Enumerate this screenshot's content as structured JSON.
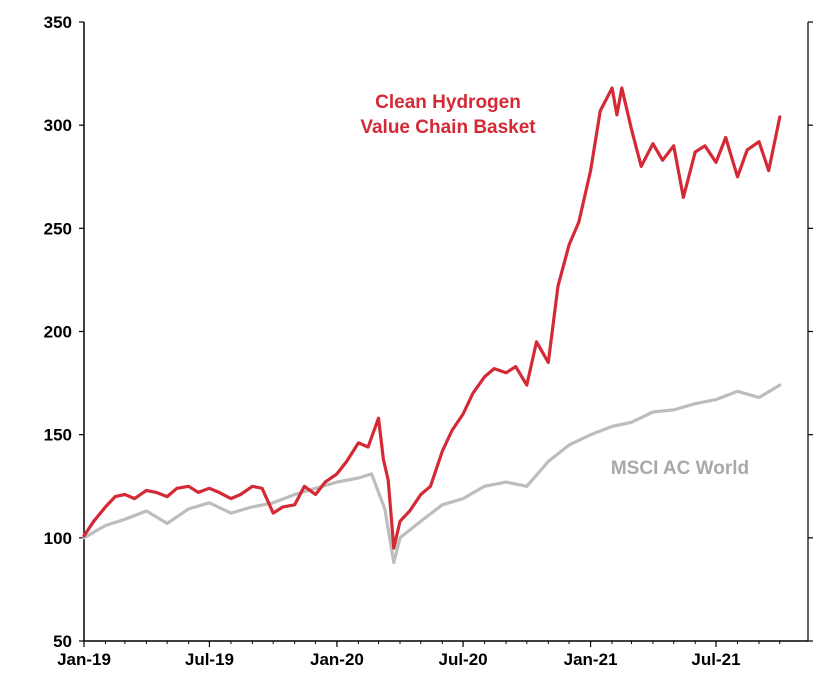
{
  "chart_data": {
    "type": "line",
    "title": "",
    "xlabel": "",
    "ylabel": "",
    "x_ticks": [
      "Jan-19",
      "Jul-19",
      "Jan-20",
      "Jul-20",
      "Jan-21",
      "Jul-21"
    ],
    "xlim": [
      "2019-01",
      "2021-10"
    ],
    "y_ticks": [
      50,
      100,
      150,
      200,
      250,
      300,
      350
    ],
    "ylim": [
      50,
      350
    ],
    "grid": false,
    "legend": "inline labels",
    "labels": {
      "hydrogen_line1": "Clean Hydrogen",
      "hydrogen_line2": "Value Chain Basket",
      "msci": "MSCI AC World"
    },
    "series": [
      {
        "name": "Clean Hydrogen Value Chain Basket",
        "color": "#d42a35",
        "points": [
          [
            "2019-01",
            101
          ],
          [
            "2019-01-15",
            108
          ],
          [
            "2019-02",
            115
          ],
          [
            "2019-02-15",
            120
          ],
          [
            "2019-03",
            121
          ],
          [
            "2019-03-15",
            119
          ],
          [
            "2019-04",
            123
          ],
          [
            "2019-04-15",
            122
          ],
          [
            "2019-05",
            120
          ],
          [
            "2019-05-15",
            124
          ],
          [
            "2019-06",
            125
          ],
          [
            "2019-06-15",
            122
          ],
          [
            "2019-07",
            124
          ],
          [
            "2019-07-15",
            122
          ],
          [
            "2019-08",
            119
          ],
          [
            "2019-08-15",
            121
          ],
          [
            "2019-09",
            125
          ],
          [
            "2019-09-15",
            124
          ],
          [
            "2019-10",
            112
          ],
          [
            "2019-10-15",
            115
          ],
          [
            "2019-11",
            116
          ],
          [
            "2019-11-15",
            125
          ],
          [
            "2019-12",
            121
          ],
          [
            "2019-12-15",
            127
          ],
          [
            "2020-01",
            131
          ],
          [
            "2020-01-15",
            137
          ],
          [
            "2020-02",
            146
          ],
          [
            "2020-02-15",
            144
          ],
          [
            "2020-03",
            158
          ],
          [
            "2020-03-08",
            138
          ],
          [
            "2020-03-15",
            128
          ],
          [
            "2020-03-23",
            95
          ],
          [
            "2020-04",
            108
          ],
          [
            "2020-04-15",
            113
          ],
          [
            "2020-05",
            121
          ],
          [
            "2020-05-15",
            125
          ],
          [
            "2020-06",
            142
          ],
          [
            "2020-06-15",
            152
          ],
          [
            "2020-07",
            160
          ],
          [
            "2020-07-15",
            170
          ],
          [
            "2020-08",
            178
          ],
          [
            "2020-08-15",
            182
          ],
          [
            "2020-09",
            180
          ],
          [
            "2020-09-15",
            183
          ],
          [
            "2020-10",
            174
          ],
          [
            "2020-10-15",
            195
          ],
          [
            "2020-11",
            185
          ],
          [
            "2020-11-15",
            222
          ],
          [
            "2020-12",
            242
          ],
          [
            "2020-12-15",
            253
          ],
          [
            "2021-01",
            278
          ],
          [
            "2021-01-15",
            307
          ],
          [
            "2021-02",
            318
          ],
          [
            "2021-02-08",
            305
          ],
          [
            "2021-02-15",
            318
          ],
          [
            "2021-03",
            298
          ],
          [
            "2021-03-15",
            280
          ],
          [
            "2021-04",
            291
          ],
          [
            "2021-04-15",
            283
          ],
          [
            "2021-05",
            290
          ],
          [
            "2021-05-15",
            265
          ],
          [
            "2021-06",
            287
          ],
          [
            "2021-06-15",
            290
          ],
          [
            "2021-07",
            282
          ],
          [
            "2021-07-15",
            294
          ],
          [
            "2021-08",
            275
          ],
          [
            "2021-08-15",
            288
          ],
          [
            "2021-09",
            292
          ],
          [
            "2021-09-15",
            278
          ],
          [
            "2021-10",
            304
          ]
        ]
      },
      {
        "name": "MSCI AC World",
        "color": "#bdbdbd",
        "points": [
          [
            "2019-01",
            100
          ],
          [
            "2019-02",
            106
          ],
          [
            "2019-03",
            109
          ],
          [
            "2019-04",
            113
          ],
          [
            "2019-05",
            107
          ],
          [
            "2019-06",
            114
          ],
          [
            "2019-07",
            117
          ],
          [
            "2019-08",
            112
          ],
          [
            "2019-09",
            115
          ],
          [
            "2019-10",
            117
          ],
          [
            "2019-11",
            121
          ],
          [
            "2019-12",
            124
          ],
          [
            "2020-01",
            127
          ],
          [
            "2020-02",
            129
          ],
          [
            "2020-02-20",
            131
          ],
          [
            "2020-03-10",
            114
          ],
          [
            "2020-03-23",
            88
          ],
          [
            "2020-04",
            100
          ],
          [
            "2020-05",
            108
          ],
          [
            "2020-06",
            116
          ],
          [
            "2020-07",
            119
          ],
          [
            "2020-08",
            125
          ],
          [
            "2020-09",
            127
          ],
          [
            "2020-10",
            125
          ],
          [
            "2020-11",
            137
          ],
          [
            "2020-12",
            145
          ],
          [
            "2021-01",
            150
          ],
          [
            "2021-02",
            154
          ],
          [
            "2021-03",
            156
          ],
          [
            "2021-04",
            161
          ],
          [
            "2021-05",
            162
          ],
          [
            "2021-06",
            165
          ],
          [
            "2021-07",
            167
          ],
          [
            "2021-08",
            171
          ],
          [
            "2021-09",
            168
          ],
          [
            "2021-10",
            174
          ]
        ]
      }
    ]
  }
}
